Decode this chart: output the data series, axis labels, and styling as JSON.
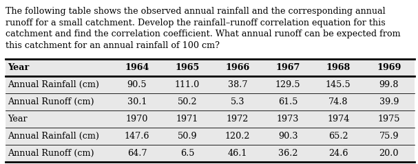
{
  "paragraph": "The following table shows the observed annual rainfall and the corresponding annual runoff for a small catchment. Develop the rainfall–runoff correlation equation for this catchment and find the correlation coefficient. What annual runoff can be expected from this catchment for an annual rainfall of 100 cm?",
  "col_headers": [
    "Year",
    "1964",
    "1965",
    "1966",
    "1967",
    "1968",
    "1969"
  ],
  "row1": [
    "Annual Rainfall (cm)",
    "90.5",
    "111.0",
    "38.7",
    "129.5",
    "145.5",
    "99.8"
  ],
  "row2": [
    "Annual Runoff (cm)",
    "30.1",
    "50.2",
    "5.3",
    "61.5",
    "74.8",
    "39.9"
  ],
  "row3": [
    "Year",
    "1970",
    "1971",
    "1972",
    "1973",
    "1974",
    "1975"
  ],
  "row4": [
    "Annual Rainfall (cm)",
    "147.6",
    "50.9",
    "120.2",
    "90.3",
    "65.2",
    "75.9"
  ],
  "row5": [
    "Annual Runoff (cm)",
    "64.7",
    "6.5",
    "46.1",
    "36.2",
    "24.6",
    "20.0"
  ],
  "text_color": "#000000",
  "font_size_para": 9.2,
  "font_size_table": 9.2,
  "fig_width": 6.07,
  "fig_height": 2.39,
  "table_bg": "#e8e8e8"
}
